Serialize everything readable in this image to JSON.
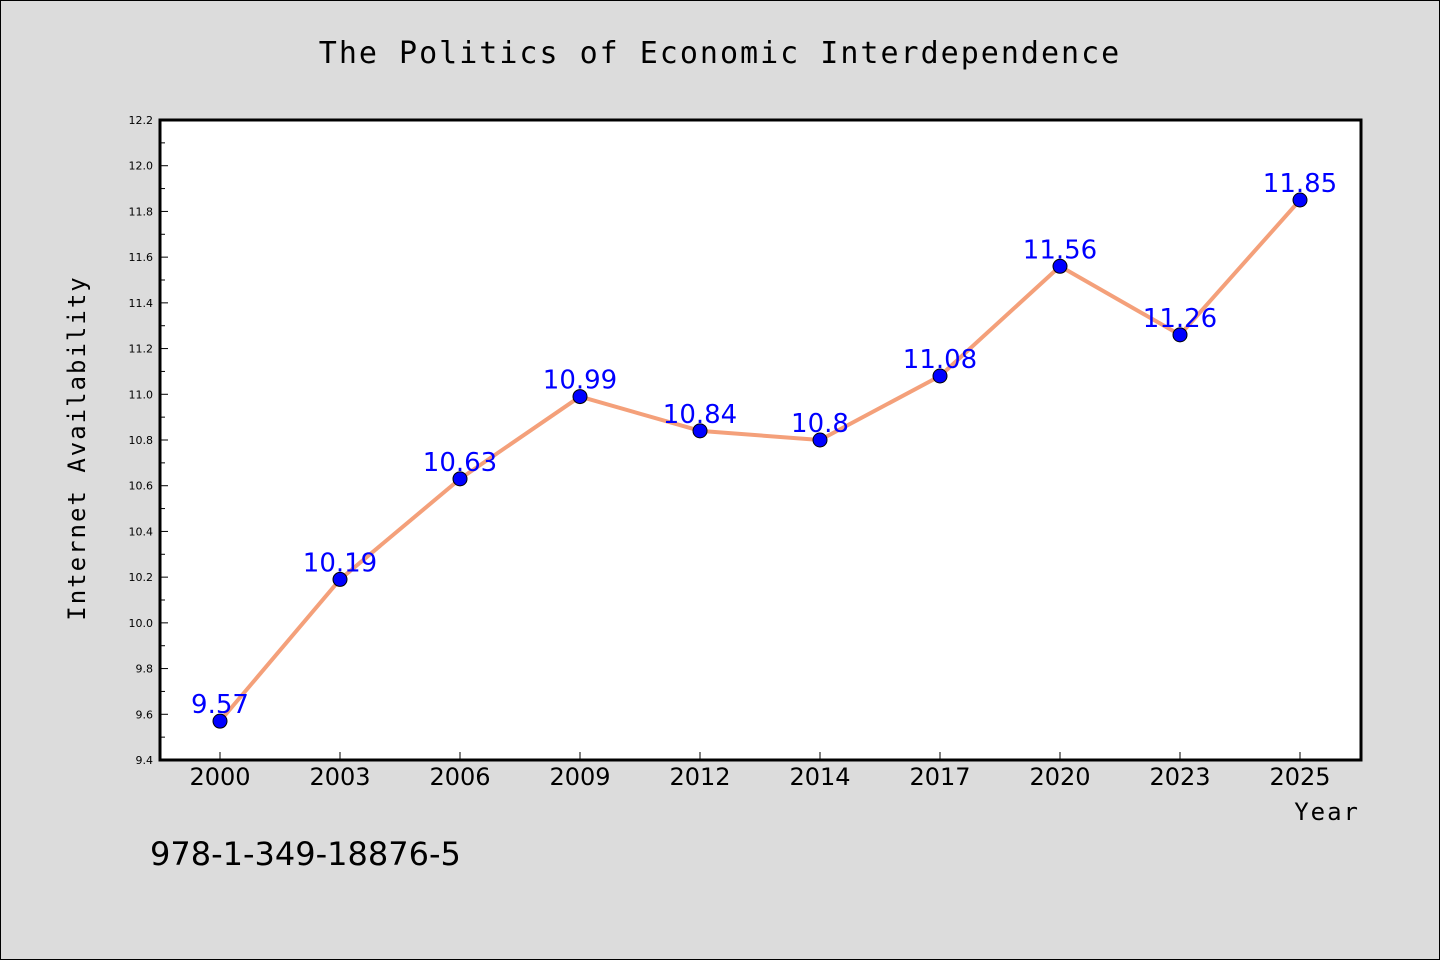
{
  "chart_data": {
    "type": "line",
    "title": "The Politics of Economic Interdependence",
    "xlabel": "Year",
    "ylabel": "Internet Availability",
    "categories": [
      "2000",
      "2003",
      "2006",
      "2009",
      "2012",
      "2014",
      "2017",
      "2020",
      "2023",
      "2025"
    ],
    "series": [
      {
        "values": [
          9.57,
          10.19,
          10.63,
          10.99,
          10.84,
          10.8,
          11.08,
          11.56,
          11.26,
          11.85
        ],
        "labels": [
          "9.57",
          "10.19",
          "10.63",
          "10.99",
          "10.84",
          "10.8",
          "11.08",
          "11.56",
          "11.26",
          "11.85"
        ],
        "line_color": "#f4a07a",
        "marker_color": "#0000ff"
      }
    ],
    "ylim": [
      9.4,
      12.2
    ],
    "yticks": [
      "9.4",
      "9.6",
      "9.8",
      "10.0",
      "10.2",
      "10.4",
      "10.6",
      "10.8",
      "11.0",
      "11.2",
      "11.4",
      "11.6",
      "11.8",
      "12.0",
      "12.2"
    ],
    "grid": false,
    "legend": "none"
  },
  "footer": {
    "isbn": "978-1-349-18876-5"
  },
  "colors": {
    "background": "#dcdcdc",
    "plot_background": "#ffffff",
    "line": "#f4a07a",
    "marker": "#0000ff",
    "data_label": "#0000ff"
  }
}
